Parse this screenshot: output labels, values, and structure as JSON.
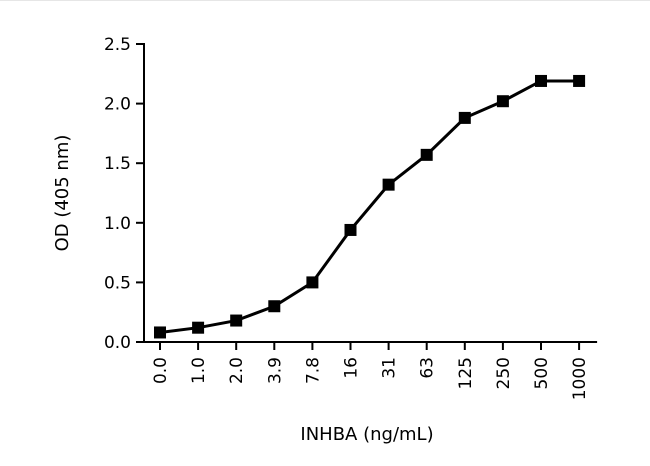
{
  "chart_data": {
    "type": "line",
    "categories": [
      "0.0",
      "1.0",
      "2.0",
      "3.9",
      "7.8",
      "16",
      "31",
      "63",
      "125",
      "250",
      "500",
      "1000"
    ],
    "series": [
      {
        "values": [
          0.08,
          0.12,
          0.18,
          0.3,
          0.5,
          0.94,
          1.32,
          1.57,
          1.88,
          2.02,
          2.19,
          2.19
        ]
      }
    ],
    "xlabel": "INHBA (ng/mL)",
    "ylabel": "OD (405 nm)",
    "ylim": [
      0,
      2.5
    ],
    "yticks": [
      0.0,
      0.5,
      1.0,
      1.5,
      2.0,
      2.5
    ],
    "ytick_labels": [
      "0.0",
      "0.5",
      "1.0",
      "1.5",
      "2.0",
      "2.5"
    ],
    "marker": "square",
    "line_color": "#000000",
    "grid": false,
    "legend": "none"
  }
}
